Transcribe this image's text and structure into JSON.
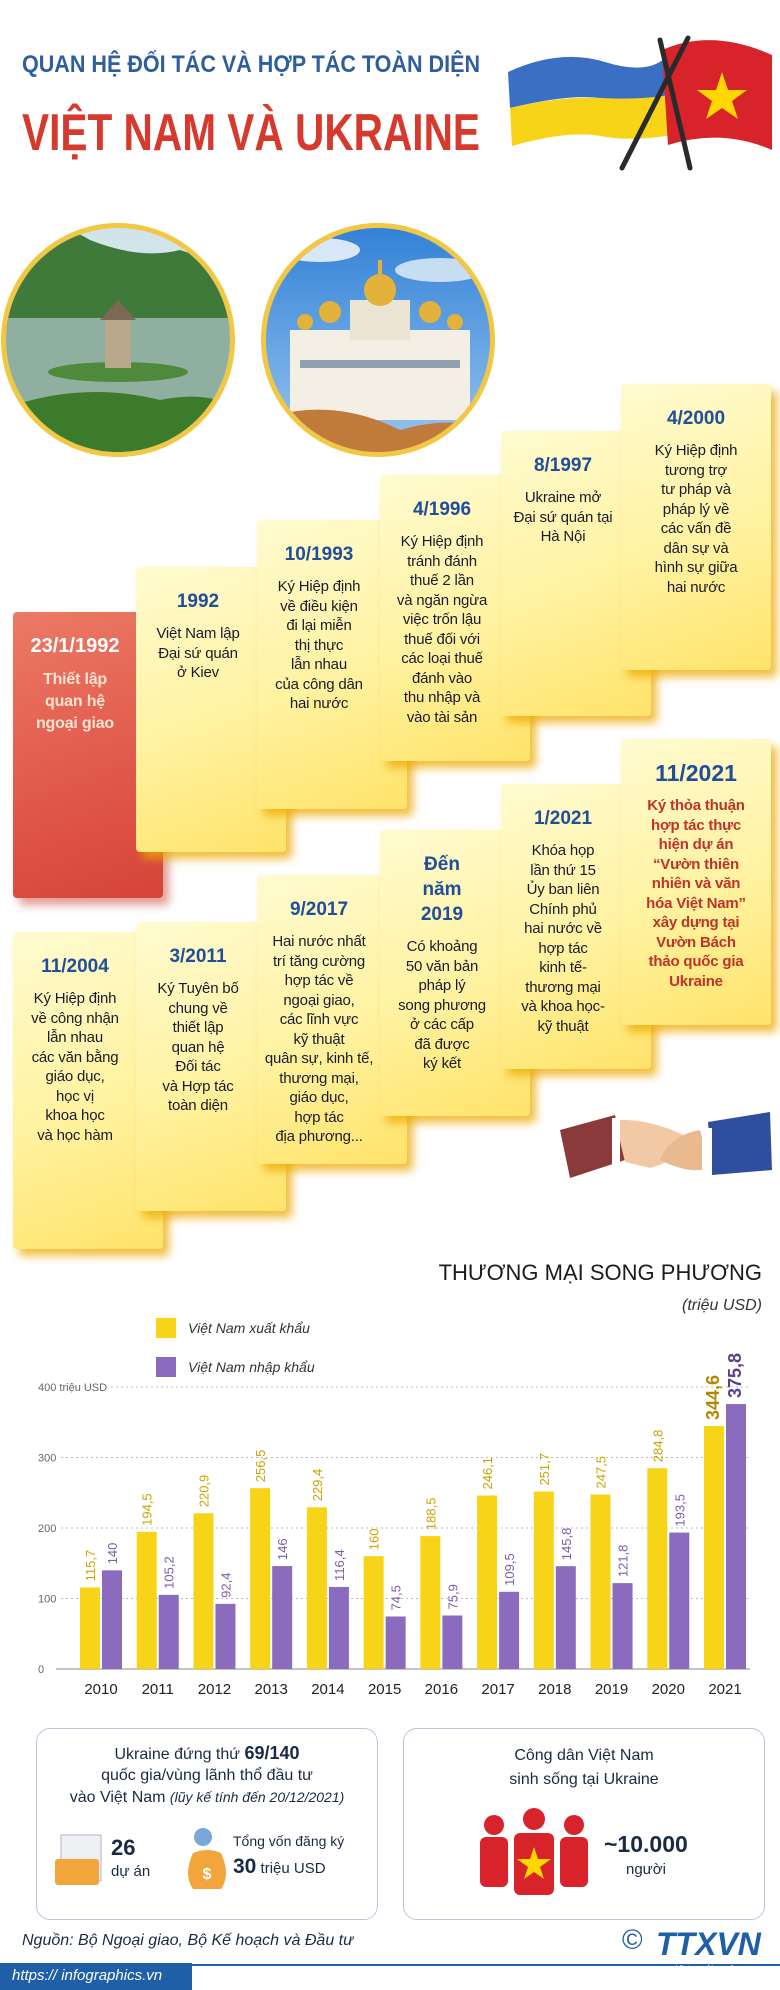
{
  "header": {
    "title_line1": "QUAN HỆ ĐỐI TÁC VÀ HỢP TÁC TOÀN DIỆN",
    "title_line2": "VIỆT NAM VÀ UKRAINE"
  },
  "timeline": [
    {
      "date": "23/1/1992",
      "lines": [
        "Thiết lập",
        "quan hệ",
        "ngoại giao"
      ]
    },
    {
      "date": "1992",
      "lines": [
        "Việt Nam lập",
        "Đại sứ quán",
        "ở Kiev"
      ]
    },
    {
      "date": "10/1993",
      "lines": [
        "Ký Hiệp định",
        "về điều kiện",
        "đi lại miễn",
        "thị thực",
        "lẫn nhau",
        "của công dân",
        "hai nước"
      ]
    },
    {
      "date": "4/1996",
      "lines": [
        "Ký Hiệp định",
        "tránh đánh",
        "thuế 2 lần",
        "và ngăn ngừa",
        "việc trốn lậu",
        "thuế đối với",
        "các loại thuế",
        "đánh vào",
        "thu nhập và",
        "vào tài sản"
      ]
    },
    {
      "date": "8/1997",
      "lines": [
        "Ukraine mở",
        "Đại sứ quán tại",
        "Hà Nội"
      ]
    },
    {
      "date": "4/2000",
      "lines": [
        "Ký Hiệp định",
        "tương trợ",
        "tư pháp và",
        "pháp lý về",
        "các vấn đề",
        "dân sự và",
        "hình sự giữa",
        "hai nước"
      ]
    },
    {
      "date": "11/2004",
      "lines": [
        "Ký Hiệp định",
        "về công nhận",
        "lẫn nhau",
        "các văn bằng",
        "giáo dục,",
        "học vị",
        "khoa học",
        "và học hàm"
      ]
    },
    {
      "date": "3/2011",
      "lines": [
        "Ký Tuyên bố",
        "chung về",
        "thiết lập",
        "quan hệ",
        "Đối tác",
        "và Hợp tác",
        "toàn diện"
      ]
    },
    {
      "date": "9/2017",
      "lines": [
        "Hai nước nhất",
        "trí tăng cường",
        "hợp tác về",
        "ngoại giao,",
        "các lĩnh vực",
        "kỹ thuật",
        "quân sự, kinh tế,",
        "thương mại,",
        "giáo dục,",
        "hợp tác",
        "địa phương..."
      ]
    },
    {
      "date": "Đến năm 2019",
      "lines": [
        "Có khoảng",
        "50 văn bản",
        "pháp lý",
        "song phương",
        "ở các cấp",
        "đã được",
        "ký kết"
      ]
    },
    {
      "date": "1/2021",
      "lines": [
        "Khóa họp",
        "lần thứ 15",
        "Ủy ban liên",
        "Chính phủ",
        "hai nước về",
        "hợp tác",
        "kinh tế-",
        "thương mại",
        "và khoa học-",
        "kỹ thuật"
      ]
    },
    {
      "date": "11/2021",
      "lines": [
        "Ký thỏa thuận",
        "hợp tác thực",
        "hiện dự án",
        "“Vườn thiên",
        "nhiên và văn",
        "hóa Việt Nam”",
        "xây dựng tại",
        "Vườn Bách",
        "thảo quốc gia",
        "Ukraine"
      ]
    }
  ],
  "chart_data": {
    "type": "bar",
    "title": "THƯƠNG MẠI SONG PHƯƠNG",
    "subtitle": "(triệu USD)",
    "categories": [
      "2010",
      "2011",
      "2012",
      "2013",
      "2014",
      "2015",
      "2016",
      "2017",
      "2018",
      "2019",
      "2020",
      "2021"
    ],
    "series": [
      {
        "name": "Việt Nam xuất khẩu",
        "color": "#f7d417",
        "values": [
          115.7,
          194.5,
          220.9,
          256.5,
          229.4,
          160,
          188.5,
          246.1,
          251.7,
          247.5,
          284.8,
          344.6
        ],
        "value_labels": [
          "115,7",
          "194,5",
          "220,9",
          "256,5",
          "229,4",
          "160",
          "188,5",
          "246,1",
          "251,7",
          "247,5",
          "284,8",
          "344,6"
        ]
      },
      {
        "name": "Việt Nam nhập khẩu",
        "color": "#8a6bbd",
        "values": [
          140,
          105.2,
          92.4,
          146,
          116.4,
          74.5,
          75.9,
          109.5,
          145.8,
          121.8,
          193.5,
          375.8
        ],
        "value_labels": [
          "140",
          "105,2",
          "92,4",
          "146",
          "116,4",
          "74,5",
          "75,9",
          "109,5",
          "145,8",
          "121,8",
          "193,5",
          "375,8"
        ]
      }
    ],
    "ylim": [
      0,
      400
    ],
    "yticks": [
      0,
      100,
      200,
      300,
      {
        "value": 400,
        "label": "400 triệu USD"
      }
    ],
    "grid": true
  },
  "stats": {
    "left": {
      "line1": "Ukraine đứng thứ",
      "rank": "69/140",
      "line2": "quốc gia/vùng lãnh thổ đầu tư",
      "line3": "vào Việt Nam",
      "note": "(lũy kế tính đến 20/12/2021)",
      "projects": "26",
      "projects_unit": "dự án",
      "capital_label": "Tổng vốn đăng ký",
      "capital": "30",
      "capital_unit": "triệu USD"
    },
    "right": {
      "line1": "Công dân Việt Nam",
      "line2": "sinh sống tại Ukraine",
      "count": "~10.000",
      "unit": "người"
    }
  },
  "footer": {
    "source": "Nguồn: Bộ Ngoại giao, Bộ Kế hoạch và Đầu tư",
    "url": "https:// infographics.vn",
    "copyright": "©",
    "logo": "TTXVN",
    "logo_sub": "Vietnam News Agency"
  }
}
